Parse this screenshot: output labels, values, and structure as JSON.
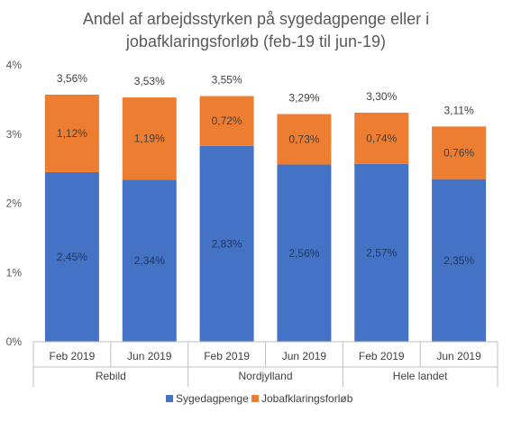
{
  "chart_data": {
    "type": "bar",
    "stacked": true,
    "title_lines": [
      "Andel af arbejdsstyrken på sygedagpenge eller i",
      "jobafklaringsforløb (feb-19 til jun-19)"
    ],
    "categories": [
      "Feb 2019",
      "Jun 2019",
      "Feb 2019",
      "Jun 2019",
      "Feb 2019",
      "Jun 2019"
    ],
    "groups": [
      {
        "label": "Rebild",
        "span": 2
      },
      {
        "label": "Nordjylland",
        "span": 2
      },
      {
        "label": "Hele landet",
        "span": 2
      }
    ],
    "series": [
      {
        "name": "Sygedagpenge",
        "color": "#4472C4",
        "values": [
          2.45,
          2.34,
          2.83,
          2.56,
          2.57,
          2.35
        ],
        "labels": [
          "2,45%",
          "2,34%",
          "2,83%",
          "2,56%",
          "2,57%",
          "2,35%"
        ],
        "label_color": "#1F3864"
      },
      {
        "name": "Jobafklaringsforløb",
        "color": "#ED7D31",
        "values": [
          1.12,
          1.19,
          0.72,
          0.73,
          0.74,
          0.76
        ],
        "labels": [
          "1,12%",
          "1,19%",
          "0,72%",
          "0,73%",
          "0,74%",
          "0,76%"
        ],
        "label_color": "#404040"
      }
    ],
    "totals": [
      "3,56%",
      "3,53%",
      "3,55%",
      "3,29%",
      "3,30%",
      "3,11%"
    ],
    "yticks": [
      0,
      1,
      2,
      3,
      4
    ],
    "ytick_labels": [
      "0%",
      "1%",
      "2%",
      "3%",
      "4%"
    ],
    "ylim": [
      0,
      4
    ],
    "grid": false,
    "legend_position": "bottom"
  }
}
